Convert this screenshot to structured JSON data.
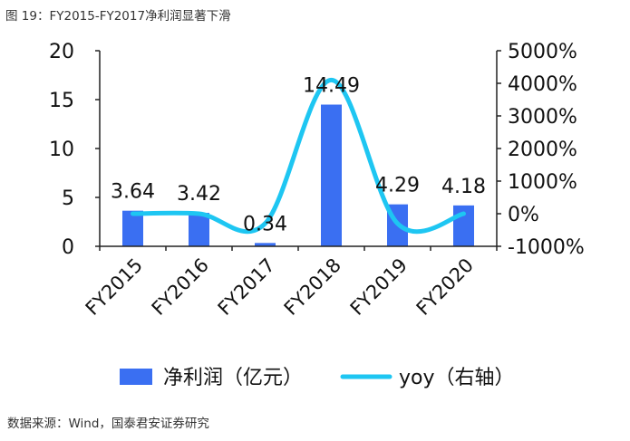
{
  "figure": {
    "title": "图 19：FY2015-FY2017净利润显著下滑",
    "source": "数据来源：Wind，国泰君安证券研究"
  },
  "colors": {
    "bar": "#3a6ff2",
    "line": "#1ec6f2",
    "axis": "#222222"
  },
  "chart_data": {
    "type": "bar",
    "categories": [
      "FY2015",
      "FY2016",
      "FY2017",
      "FY2018",
      "FY2019",
      "FY2020"
    ],
    "series": [
      {
        "name": "净利润（亿元）",
        "type": "bar",
        "axis": "left",
        "values": [
          3.64,
          3.42,
          0.34,
          14.49,
          4.29,
          4.18
        ],
        "labels": [
          "3.64",
          "3.42",
          "0.34",
          "14.49",
          "4.29",
          "4.18"
        ]
      },
      {
        "name": "yoy（右轴）",
        "type": "line",
        "axis": "right",
        "smooth": true,
        "values": [
          0,
          0,
          -300,
          4100,
          -300,
          0
        ]
      }
    ],
    "y_left": {
      "min": 0,
      "max": 20,
      "ticks": [
        "0",
        "5",
        "10",
        "15",
        "20"
      ],
      "tick_values": [
        0,
        5,
        10,
        15,
        20
      ]
    },
    "y_right": {
      "min": -1000,
      "max": 5000,
      "ticks": [
        "-1000%",
        "0%",
        "1000%",
        "2000%",
        "3000%",
        "4000%",
        "5000%"
      ],
      "tick_values": [
        -1000,
        0,
        1000,
        2000,
        3000,
        4000,
        5000
      ]
    },
    "legend_position": "bottom",
    "grid": false
  }
}
